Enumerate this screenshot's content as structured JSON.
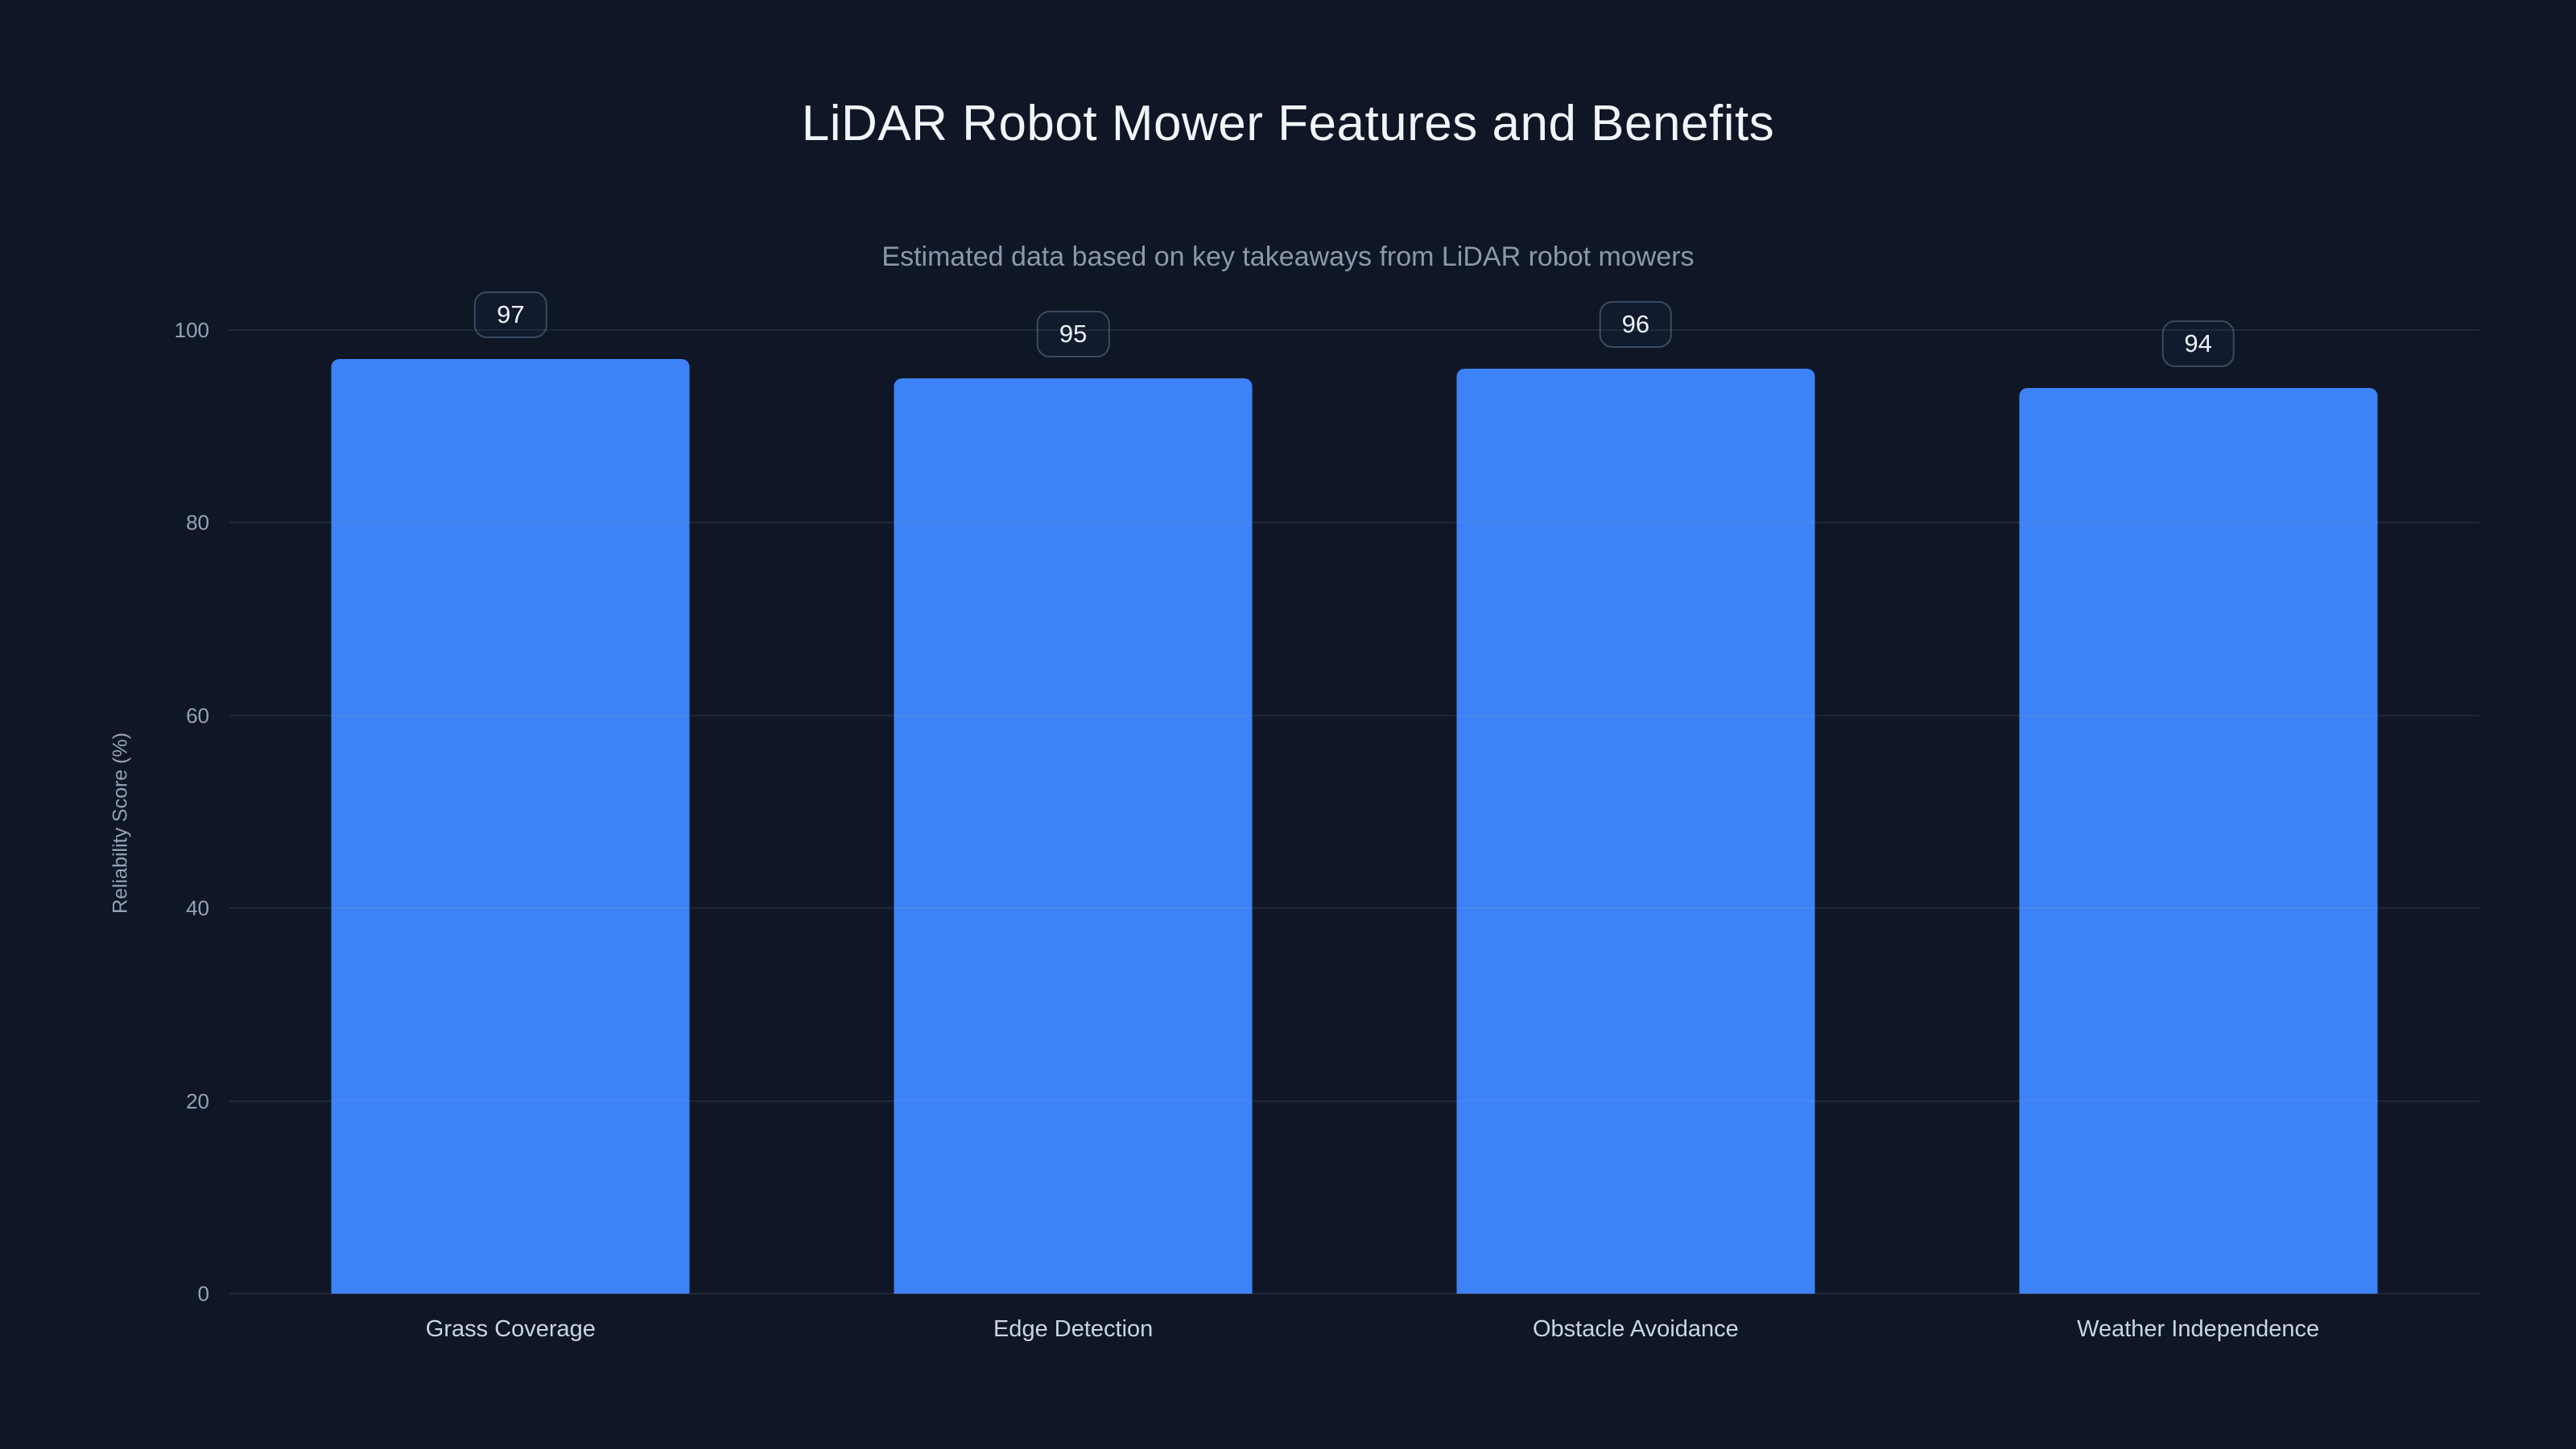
{
  "chart_data": {
    "type": "bar",
    "title": "LiDAR Robot Mower Features and Benefits",
    "subtitle": "Estimated data based on key takeaways from LiDAR robot mowers",
    "categories": [
      "Grass Coverage",
      "Edge Detection",
      "Obstacle Avoidance",
      "Weather Independence"
    ],
    "values": [
      97,
      95,
      96,
      94
    ],
    "xlabel": "",
    "ylabel": "Reliability Score (%)",
    "ylim": [
      0,
      100
    ],
    "yticks": [
      0,
      20,
      40,
      60,
      80,
      100
    ],
    "grid": true,
    "legend": false,
    "value_labels": true,
    "colors": {
      "background": "#0f1726",
      "bar": "#3d83f7",
      "gridline": "#1e293b",
      "title_text": "#f1f5f9",
      "subtitle_text": "#8b98ab",
      "tick_text": "#94a3b8",
      "badge_border": "#3b4a61"
    }
  }
}
